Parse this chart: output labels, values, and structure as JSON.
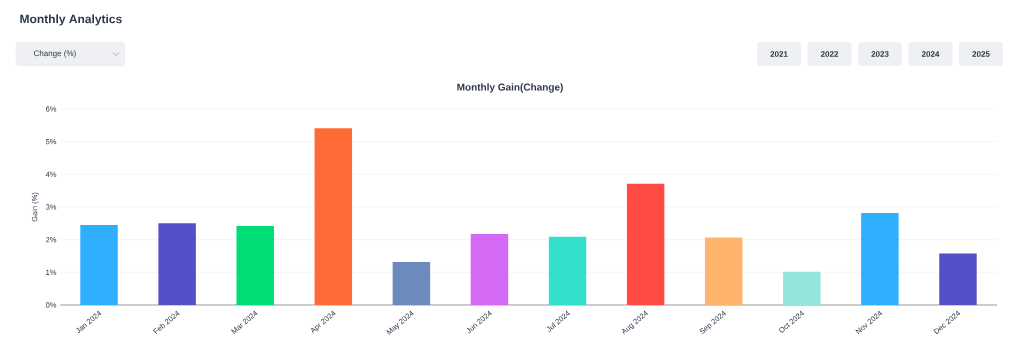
{
  "chart_data": {
    "type": "bar",
    "title": "Monthly Gain(Change)",
    "ylabel": "Gain (%)",
    "annotations": [
      "Monthly Analytics",
      "Change (%)",
      "2021",
      "2022",
      "2023",
      "2024",
      "2025"
    ],
    "categories": [
      "Jan 2024",
      "Feb 2024",
      "Mar 2024",
      "Apr 2024",
      "May 2024",
      "Jun 2024",
      "Jul 2024",
      "Aug 2024",
      "Sep 2024",
      "Oct 2024",
      "Nov 2024",
      "Dec 2024"
    ],
    "values": [
      2.45,
      2.5,
      2.42,
      5.41,
      1.32,
      2.17,
      2.09,
      3.71,
      2.07,
      1.02,
      2.82,
      1.58
    ],
    "colors": [
      "#2eaefc",
      "#5450c8",
      "#00dd77",
      "#ff6a35",
      "#6c8bbd",
      "#d369f5",
      "#34dfcb",
      "#ff4b44",
      "#ffb36b",
      "#93e6dc",
      "#2eaefc",
      "#5450c8"
    ],
    "ylim": [
      0,
      6
    ],
    "yticks": [
      {
        "value": 0,
        "label": "0%"
      },
      {
        "value": 1,
        "label": "1%"
      },
      {
        "value": 2,
        "label": "2%"
      },
      {
        "value": 3,
        "label": "3%"
      },
      {
        "value": 4,
        "label": "4%"
      },
      {
        "value": 5,
        "label": "5%"
      },
      {
        "value": 6,
        "label": "6%"
      }
    ],
    "grid": "y"
  }
}
